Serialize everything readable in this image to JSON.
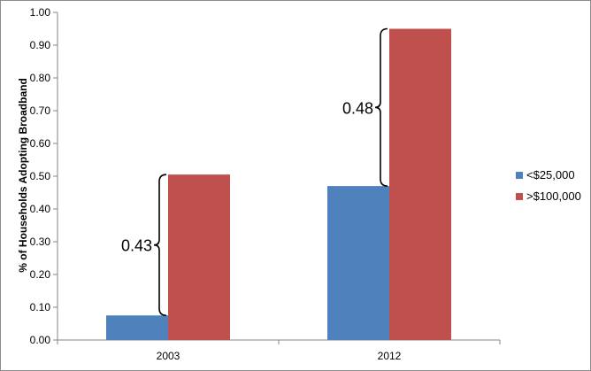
{
  "chart_data": {
    "type": "bar",
    "title": "",
    "xlabel": "",
    "ylabel": "% of Households Adopting Broadband",
    "categories": [
      "2003",
      "2012"
    ],
    "series": [
      {
        "name": "<$25,000",
        "values": [
          0.075,
          0.47
        ],
        "color": "#4f81bd"
      },
      {
        "name": ">$100,000",
        "values": [
          0.505,
          0.95
        ],
        "color": "#c0504d"
      }
    ],
    "ylim": [
      0,
      1.0
    ],
    "yticks": [
      "0.00",
      "0.10",
      "0.20",
      "0.30",
      "0.40",
      "0.50",
      "0.60",
      "0.70",
      "0.80",
      "0.90",
      "1.00"
    ],
    "grid": false,
    "legend": "right",
    "annotations": [
      {
        "category": "2003",
        "label": "0.43",
        "from": 0.075,
        "to": 0.505
      },
      {
        "category": "2012",
        "label": "0.48",
        "from": 0.47,
        "to": 0.95
      }
    ]
  }
}
